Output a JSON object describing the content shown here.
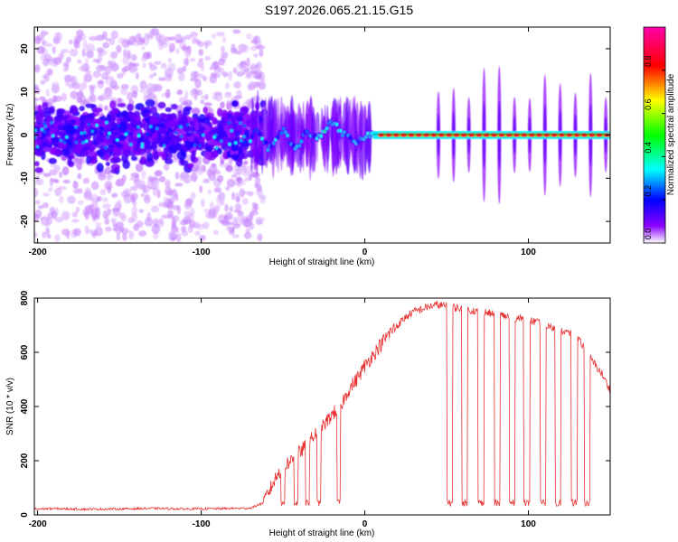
{
  "title": "S197.2026.065.21.15.G15",
  "colors": {
    "snr_line": "#e83030",
    "frame": "#000000",
    "background": "#ffffff"
  },
  "chart_data": [
    {
      "id": "spectrogram",
      "type": "heatmap",
      "title": "S197.2026.065.21.15.G15",
      "xlabel": "Height of straight line (km)",
      "ylabel": "Frequency (Hz)",
      "xlim": [
        -202,
        150
      ],
      "ylim": [
        -25,
        25
      ],
      "x_ticks": [
        -200,
        -100,
        0,
        100
      ],
      "x_tick_labels": [
        "-200",
        "-100",
        "0",
        "100"
      ],
      "y_ticks": [
        -20,
        -10,
        0,
        10,
        20
      ],
      "y_tick_labels": [
        "-20",
        "-10",
        "0",
        "10",
        "20"
      ],
      "colorbar": {
        "label": "Normalized spectral amplitude",
        "range": [
          0,
          1
        ],
        "ticks": [
          0.0,
          0.2,
          0.4,
          0.6,
          0.8
        ],
        "tick_labels": [
          "0.0",
          "0.2",
          "0.4",
          "0.6",
          "0.8"
        ],
        "colormap": [
          "#ffffff",
          "#8a00ff",
          "#0000ff",
          "#00ffff",
          "#00ff00",
          "#ffff00",
          "#ff0000",
          "#ff00aa"
        ]
      },
      "features": {
        "noise_region_x": [
          -202,
          -70
        ],
        "transition_region_x": [
          -70,
          5
        ],
        "signal_region_x": [
          5,
          150
        ],
        "signal_frequency_hz": 0,
        "wobble_peak": {
          "x": -20,
          "frequency_hz": 3
        }
      }
    },
    {
      "id": "snr",
      "type": "line",
      "xlabel": "Height of straight line (km)",
      "ylabel": "SNR (10 * v/v)",
      "xlim": [
        -202,
        150
      ],
      "ylim": [
        0,
        800
      ],
      "x_ticks": [
        -200,
        -100,
        0,
        100
      ],
      "x_tick_labels": [
        "-200",
        "-100",
        "0",
        "100"
      ],
      "y_ticks": [
        0,
        200,
        400,
        600,
        800
      ],
      "y_tick_labels": [
        "0",
        "200",
        "400",
        "600",
        "800"
      ],
      "series": [
        {
          "name": "SNR",
          "x": [
            -202,
            -190,
            -170,
            -150,
            -130,
            -110,
            -90,
            -70,
            -62,
            -55,
            -50,
            -45,
            -40,
            -35,
            -30,
            -25,
            -20,
            -15,
            -10,
            -5,
            0,
            5,
            10,
            15,
            20,
            25,
            30,
            35,
            40,
            45,
            50,
            55,
            60,
            65,
            70,
            75,
            80,
            85,
            90,
            95,
            100,
            105,
            110,
            115,
            120,
            125,
            130,
            135,
            140,
            145,
            150
          ],
          "values": [
            22,
            23,
            21,
            22,
            24,
            22,
            23,
            25,
            45,
            130,
            180,
            200,
            230,
            260,
            300,
            330,
            370,
            400,
            460,
            500,
            550,
            590,
            630,
            670,
            700,
            730,
            750,
            760,
            770,
            775,
            770,
            765,
            760,
            755,
            750,
            745,
            740,
            735,
            730,
            725,
            720,
            710,
            700,
            690,
            680,
            670,
            650,
            610,
            560,
            520,
            460
          ]
        }
      ],
      "dropouts": {
        "x_centers": [
          -50,
          -42,
          -35,
          -28,
          -16,
          52,
          61,
          71,
          81,
          90,
          99,
          109,
          118,
          128,
          136
        ],
        "floor_value": 45
      }
    }
  ]
}
